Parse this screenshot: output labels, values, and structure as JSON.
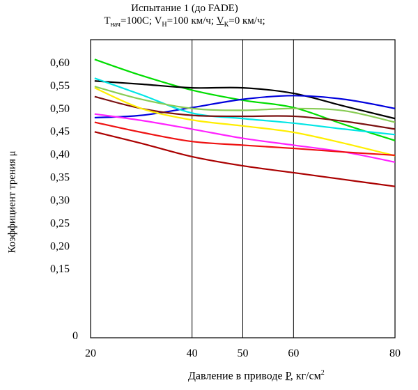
{
  "chart_data": {
    "type": "line",
    "title": "Испытание 1 (до FADE)",
    "subtitle": {
      "t_label": "T",
      "t_sub": "нач",
      "t_val": "=100C; ",
      "vn_label": "V",
      "vn_sub": "Н",
      "vn_val": "=100 км/ч; ",
      "vk_label": "V",
      "vk_sub": "К",
      "vk_val": "=0 км/ч;"
    },
    "xlabel": {
      "text": "Давление в приводе ",
      "var": "P",
      "unit": ", кг/см",
      "sup": "2"
    },
    "ylabel": "Коэффициент трения μ",
    "xlim": [
      20,
      80
    ],
    "ylim": [
      0,
      0.65
    ],
    "x_ticks": [
      20,
      40,
      50,
      60,
      80
    ],
    "x_tick_labels": [
      "20",
      "40",
      "50",
      "60",
      "80"
    ],
    "y_ticks": [
      0.15,
      0.2,
      0.25,
      0.3,
      0.35,
      0.4,
      0.45,
      0.5,
      0.55,
      0.6
    ],
    "y_tick_labels": [
      "0,15",
      "0,20",
      "0,25",
      "0,30",
      "0,35",
      "0,40",
      "0,45",
      "0,50",
      "0,55",
      "0,60"
    ],
    "y_zero_label": "0",
    "grid": true,
    "series": [
      {
        "color": "#00dd00",
        "x": [
          20.8,
          30,
          40,
          50,
          60,
          70,
          80
        ],
        "y": [
          0.607,
          0.572,
          0.54,
          0.518,
          0.502,
          0.465,
          0.43
        ]
      },
      {
        "color": "#000000",
        "x": [
          20.8,
          30,
          40,
          50,
          60,
          70,
          80
        ],
        "y": [
          0.56,
          0.553,
          0.545,
          0.545,
          0.533,
          0.505,
          0.478
        ]
      },
      {
        "color": "#0000dd",
        "x": [
          20.8,
          30,
          40,
          50,
          60,
          70,
          80
        ],
        "y": [
          0.48,
          0.485,
          0.502,
          0.52,
          0.528,
          0.52,
          0.5
        ]
      },
      {
        "color": "#00e5e5",
        "x": [
          20.8,
          30,
          40,
          50,
          60,
          70,
          80
        ],
        "y": [
          0.566,
          0.53,
          0.49,
          0.478,
          0.468,
          0.455,
          0.443
        ]
      },
      {
        "color": "#88cc55",
        "x": [
          20.8,
          30,
          40,
          50,
          60,
          70,
          80
        ],
        "y": [
          0.548,
          0.52,
          0.5,
          0.496,
          0.5,
          0.495,
          0.47
        ]
      },
      {
        "color": "#7a1010",
        "x": [
          20.8,
          30,
          40,
          50,
          60,
          70,
          80
        ],
        "y": [
          0.526,
          0.5,
          0.485,
          0.483,
          0.483,
          0.472,
          0.455
        ]
      },
      {
        "color": "#ffee00",
        "x": [
          20.8,
          30,
          40,
          50,
          60,
          70,
          80
        ],
        "y": [
          0.545,
          0.5,
          0.475,
          0.462,
          0.448,
          0.424,
          0.397
        ]
      },
      {
        "color": "#ff22ff",
        "x": [
          20.8,
          30,
          40,
          50,
          60,
          70,
          80
        ],
        "y": [
          0.488,
          0.474,
          0.455,
          0.435,
          0.42,
          0.405,
          0.383
        ]
      },
      {
        "color": "#ee1111",
        "x": [
          20.8,
          30,
          40,
          50,
          60,
          70,
          80
        ],
        "y": [
          0.47,
          0.448,
          0.428,
          0.42,
          0.413,
          0.405,
          0.398
        ]
      },
      {
        "color": "#aa0000",
        "x": [
          20.8,
          30,
          40,
          50,
          60,
          70,
          80
        ],
        "y": [
          0.449,
          0.424,
          0.395,
          0.375,
          0.36,
          0.345,
          0.33
        ]
      }
    ]
  }
}
